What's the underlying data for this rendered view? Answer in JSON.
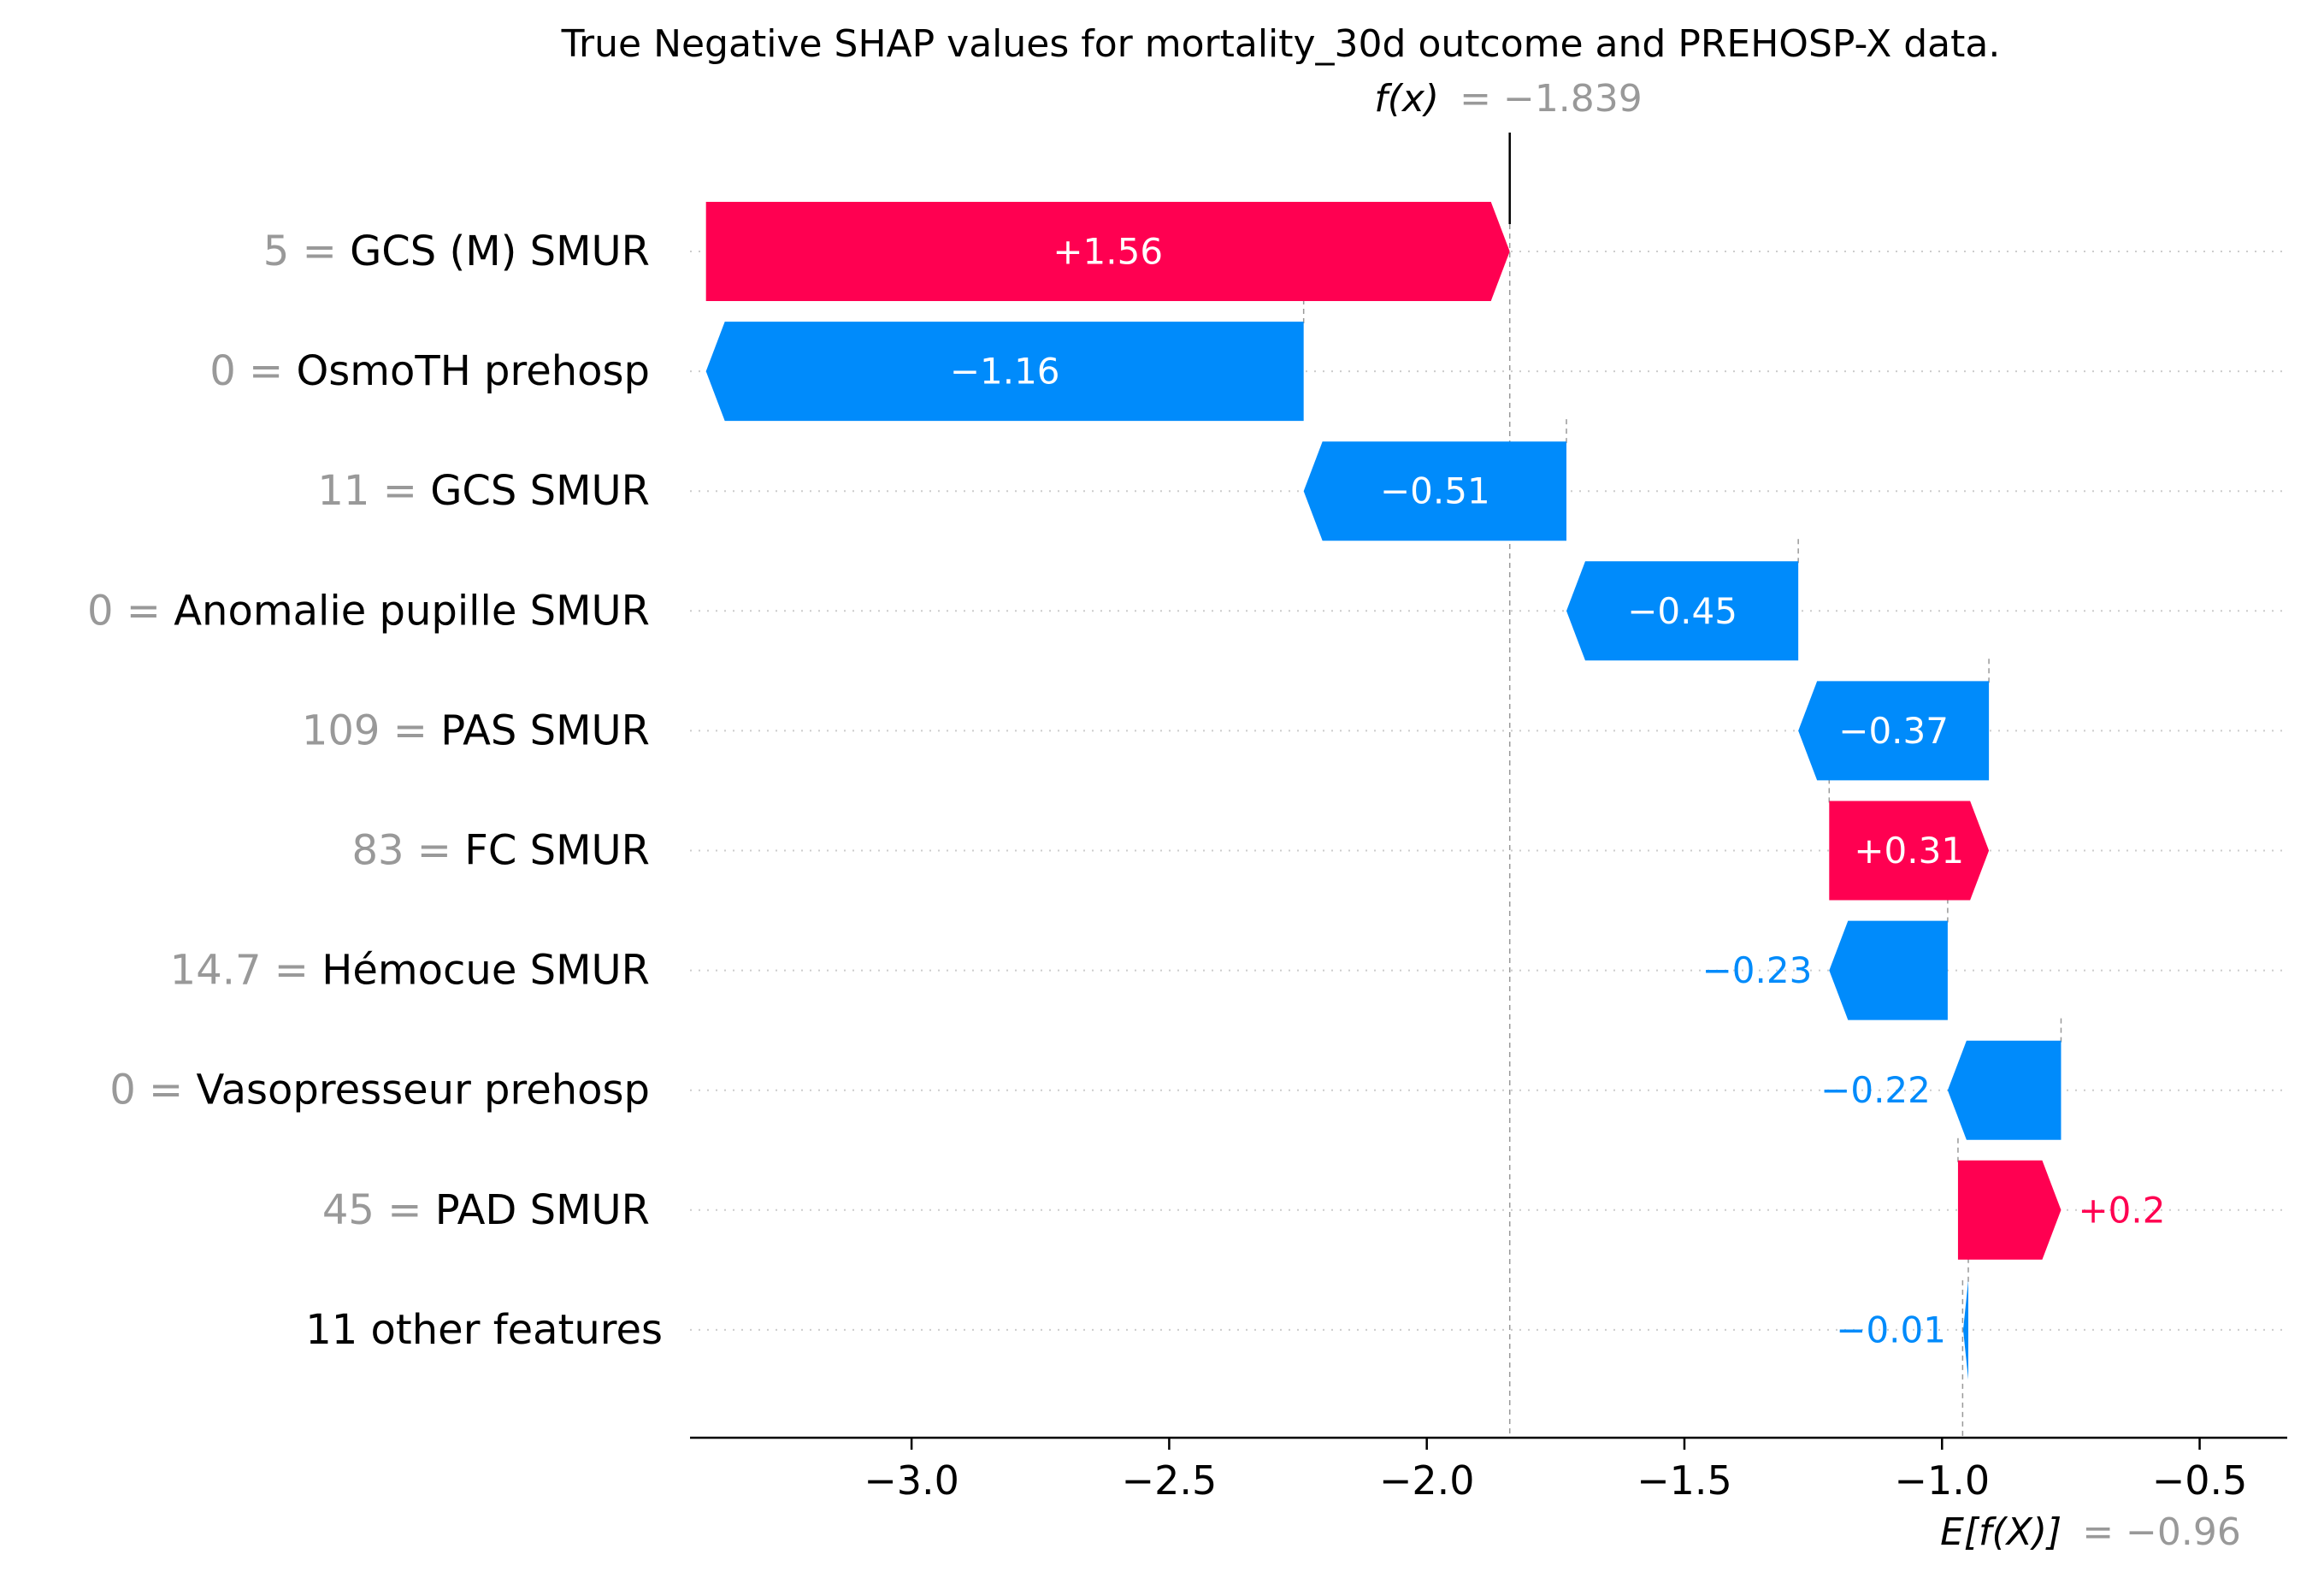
{
  "chart_data": {
    "type": "bar",
    "subtype": "waterfall",
    "title": "True Negative SHAP values for mortality_30d outcome and PREHOSP-X data.",
    "fx": {
      "label": "f(x)",
      "value_text": "= −1.839",
      "value": -1.839
    },
    "efx": {
      "label": "E[f(X)]",
      "value_text": "= −0.96",
      "value": -0.96
    },
    "xlim": [
      -3.43,
      -0.33
    ],
    "xticks": [
      {
        "value": -3.0,
        "label": "−3.0"
      },
      {
        "value": -2.5,
        "label": "−2.5"
      },
      {
        "value": -2.0,
        "label": "−2.0"
      },
      {
        "value": -1.5,
        "label": "−1.5"
      },
      {
        "value": -1.0,
        "label": "−1.0"
      },
      {
        "value": -0.5,
        "label": "−0.5"
      }
    ],
    "grid": "horizontal dotted",
    "features": [
      {
        "value": "5 =",
        "name": "GCS (M) SMUR",
        "shap": 1.56,
        "label": "+1.56",
        "start": -3.399,
        "end": -1.839
      },
      {
        "value": "0 =",
        "name": "OsmoTH prehosp",
        "shap": -1.16,
        "label": "−1.16",
        "start": -2.239,
        "end": -3.399
      },
      {
        "value": "11 =",
        "name": "GCS SMUR",
        "shap": -0.51,
        "label": "−0.51",
        "start": -1.729,
        "end": -2.239
      },
      {
        "value": "0 =",
        "name": "Anomalie pupille SMUR",
        "shap": -0.45,
        "label": "−0.45",
        "start": -1.279,
        "end": -1.729
      },
      {
        "value": "109 =",
        "name": "PAS  SMUR",
        "shap": -0.37,
        "label": "−0.37",
        "start": -0.909,
        "end": -1.279
      },
      {
        "value": "83 =",
        "name": "FC SMUR",
        "shap": 0.31,
        "label": "+0.31",
        "start": -1.219,
        "end": -0.909
      },
      {
        "value": "14.7 =",
        "name": "Hémocue SMUR",
        "shap": -0.23,
        "label": "−0.23",
        "start": -0.989,
        "end": -1.219
      },
      {
        "value": "0 =",
        "name": "Vasopresseur prehosp",
        "shap": -0.22,
        "label": "−0.22",
        "start": -0.769,
        "end": -0.989
      },
      {
        "value": "45 =",
        "name": "PAD  SMUR",
        "shap": 0.2,
        "label": "+0.2",
        "start": -0.969,
        "end": -0.769
      },
      {
        "value": "",
        "name": "11 other features",
        "shap": -0.01,
        "label": "−0.01",
        "start": -0.949,
        "end": -0.959
      }
    ],
    "colors": {
      "positive": "#ff0051",
      "negative": "#008bfb",
      "value_gray": "#999999",
      "text": "#000000"
    }
  }
}
